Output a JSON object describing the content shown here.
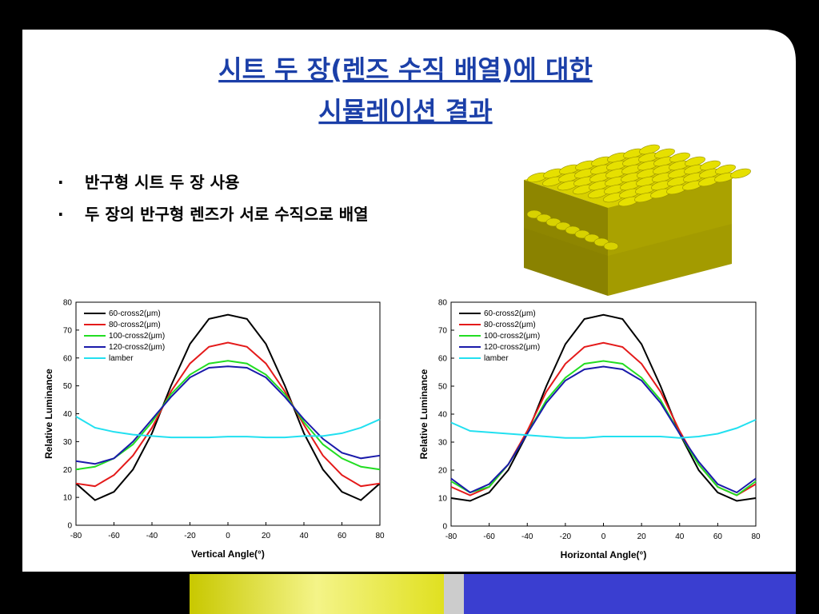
{
  "slide": {
    "title": [
      "시트 두 장(렌즈 수직 배열)에 대한",
      "시뮬레이션 결과"
    ],
    "bullets": [
      "반구형 시트 두 장 사용",
      "두 장의 반구형 렌즈가 서로 수직으로 배열"
    ]
  },
  "chart_data": [
    {
      "type": "line",
      "x_label": "Vertical Angle(°)",
      "y_label": "Relative Luminance",
      "x": [
        -80,
        -70,
        -60,
        -50,
        -40,
        -30,
        -20,
        -10,
        0,
        10,
        20,
        30,
        40,
        50,
        60,
        70,
        80
      ],
      "xlim": [
        -80,
        80
      ],
      "xticks": [
        -80,
        -60,
        -40,
        -20,
        0,
        20,
        40,
        60,
        80
      ],
      "ylim": [
        0,
        80
      ],
      "yticks": [
        0,
        10,
        20,
        30,
        40,
        50,
        60,
        70,
        80
      ],
      "legend": "upper left",
      "series": [
        {
          "name": "60-cross2(μm)",
          "color": "#000000",
          "values": [
            15,
            9,
            12,
            20,
            33,
            50,
            65,
            74,
            75.5,
            74,
            65,
            50,
            33,
            20,
            12,
            9,
            15
          ]
        },
        {
          "name": "80-cross2(μm)",
          "color": "#e41a1a",
          "values": [
            15,
            14,
            18,
            25,
            35,
            48,
            58,
            64,
            65.5,
            64,
            58,
            48,
            36,
            25,
            18,
            14,
            15
          ]
        },
        {
          "name": "100-cross2(μm)",
          "color": "#22dd22",
          "values": [
            20,
            21,
            24,
            29,
            37,
            47,
            54,
            58,
            59,
            58,
            54,
            47,
            37,
            29,
            24,
            21,
            20
          ]
        },
        {
          "name": "120-cross2(μm)",
          "color": "#1a1aaa",
          "values": [
            23,
            22,
            24,
            30,
            38,
            46,
            53,
            56.5,
            57,
            56.5,
            53,
            46,
            38,
            31,
            26,
            24,
            25
          ]
        },
        {
          "name": "lamber",
          "color": "#22e0f0",
          "values": [
            39,
            35,
            33.5,
            32.5,
            32,
            31.5,
            31.5,
            31.5,
            31.8,
            31.8,
            31.5,
            31.5,
            32,
            32,
            33,
            35,
            38
          ]
        }
      ]
    },
    {
      "type": "line",
      "x_label": "Horizontal Angle(°)",
      "y_label": "Relative Luminance",
      "x": [
        -80,
        -70,
        -60,
        -50,
        -40,
        -30,
        -20,
        -10,
        0,
        10,
        20,
        30,
        40,
        50,
        60,
        70,
        80
      ],
      "xlim": [
        -80,
        80
      ],
      "xticks": [
        -80,
        -60,
        -40,
        -20,
        0,
        20,
        40,
        60,
        80
      ],
      "ylim": [
        0,
        80
      ],
      "yticks": [
        0,
        10,
        20,
        30,
        40,
        50,
        60,
        70,
        80
      ],
      "legend": "upper left",
      "series": [
        {
          "name": "60-cross2(μm)",
          "color": "#000000",
          "values": [
            10,
            9,
            12,
            20,
            33,
            50,
            65,
            74,
            75.5,
            74,
            65,
            50,
            33,
            20,
            12,
            9,
            10
          ]
        },
        {
          "name": "80-cross2(μm)",
          "color": "#e41a1a",
          "values": [
            14,
            11,
            14,
            22,
            34,
            48,
            58,
            64,
            65.5,
            64,
            58,
            48,
            34,
            22,
            14,
            11,
            15
          ]
        },
        {
          "name": "100-cross2(μm)",
          "color": "#22dd22",
          "values": [
            16,
            12,
            14,
            22,
            33,
            45,
            53,
            58,
            59,
            58,
            53,
            45,
            33,
            22,
            14,
            11,
            16
          ]
        },
        {
          "name": "120-cross2(μm)",
          "color": "#1a1aaa",
          "values": [
            17,
            12,
            15,
            22,
            33,
            44,
            52,
            56,
            57,
            56,
            52,
            44,
            33,
            23,
            15,
            12,
            17
          ]
        },
        {
          "name": "lamber",
          "color": "#22e0f0",
          "values": [
            37,
            34,
            33.5,
            33,
            32.5,
            32,
            31.5,
            31.5,
            32,
            32,
            32,
            32,
            31.5,
            32,
            33,
            35,
            38
          ]
        }
      ]
    }
  ]
}
